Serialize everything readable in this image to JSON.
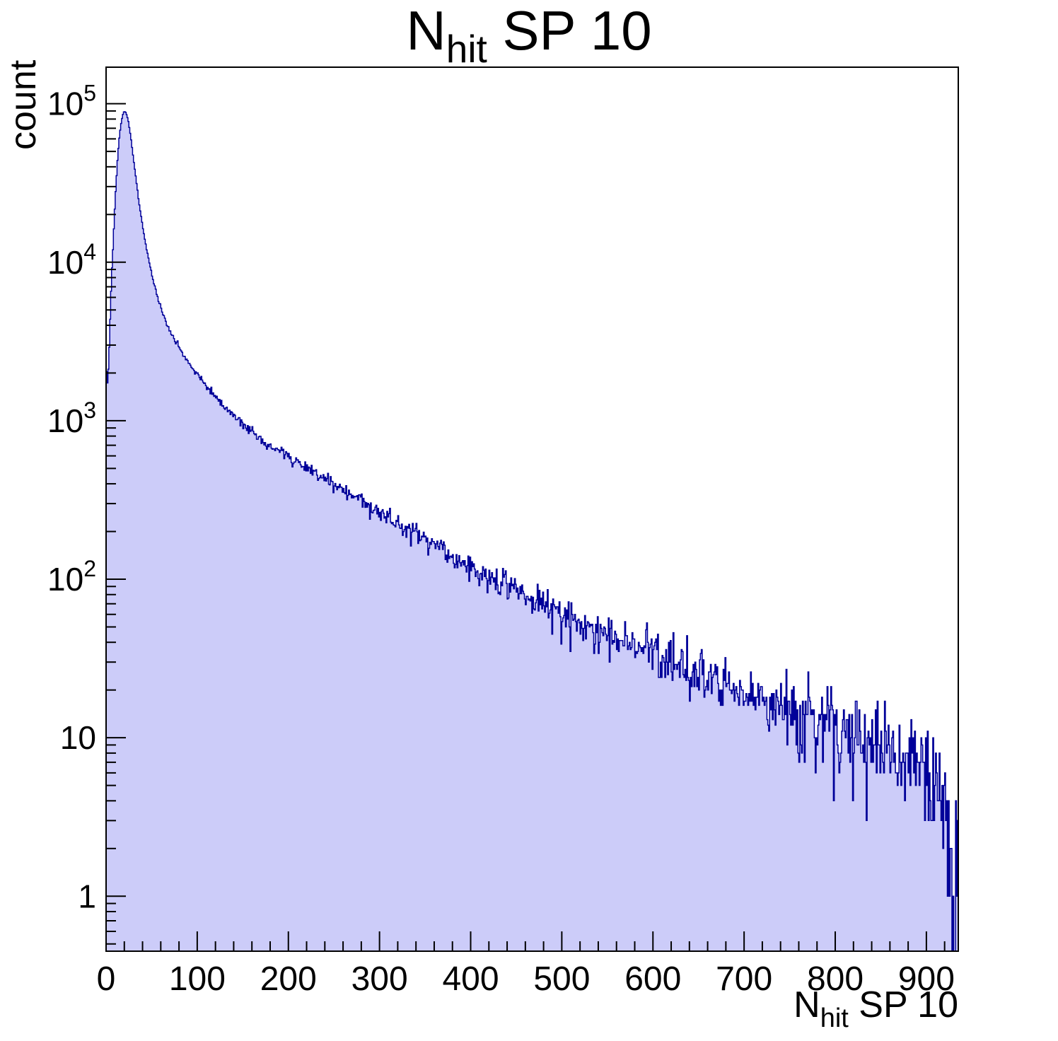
{
  "title": {
    "prefix": "N",
    "sub": "hit",
    "suffix": " SP 10"
  },
  "y_axis": {
    "label": "count"
  },
  "x_axis": {
    "label_prefix": "N",
    "label_sub": "hit",
    "label_suffix": " SP 10"
  },
  "chart_data": {
    "type": "bar",
    "subtype": "histogram-step-filled",
    "title": "N_{hit} SP 10",
    "xlabel": "N_{hit} SP 10",
    "ylabel": "count",
    "x_min": 0,
    "x_max": 935,
    "bin_width": 1,
    "y_scale": "log",
    "y_min": 0.45,
    "y_max": 170000,
    "grid": false,
    "legend": "none",
    "x_major_ticks": [
      0,
      100,
      200,
      300,
      400,
      500,
      600,
      700,
      800,
      900
    ],
    "x_minor_step": 20,
    "y_major_ticks": [
      {
        "value": 1,
        "base": "1",
        "exp": ""
      },
      {
        "value": 10,
        "base": "10",
        "exp": ""
      },
      {
        "value": 100,
        "base": "10",
        "exp": "2"
      },
      {
        "value": 1000,
        "base": "10",
        "exp": "3"
      },
      {
        "value": 10000,
        "base": "10",
        "exp": "4"
      },
      {
        "value": 100000,
        "base": "10",
        "exp": "5"
      }
    ],
    "envelope_points": [
      [
        0,
        2600
      ],
      [
        1,
        1500
      ],
      [
        2,
        1800
      ],
      [
        4,
        3500
      ],
      [
        6,
        8000
      ],
      [
        8,
        14000
      ],
      [
        10,
        25000
      ],
      [
        12,
        40000
      ],
      [
        14,
        57000
      ],
      [
        16,
        72000
      ],
      [
        18,
        84000
      ],
      [
        20,
        90000
      ],
      [
        22,
        88000
      ],
      [
        24,
        80000
      ],
      [
        26,
        68000
      ],
      [
        28,
        56000
      ],
      [
        30,
        45000
      ],
      [
        33,
        33000
      ],
      [
        36,
        24000
      ],
      [
        40,
        17000
      ],
      [
        44,
        12500
      ],
      [
        48,
        9500
      ],
      [
        52,
        7600
      ],
      [
        56,
        6200
      ],
      [
        60,
        5200
      ],
      [
        65,
        4300
      ],
      [
        70,
        3700
      ],
      [
        75,
        3250
      ],
      [
        80,
        2900
      ],
      [
        85,
        2600
      ],
      [
        90,
        2350
      ],
      [
        95,
        2150
      ],
      [
        100,
        1950
      ],
      [
        110,
        1650
      ],
      [
        120,
        1420
      ],
      [
        130,
        1230
      ],
      [
        140,
        1070
      ],
      [
        150,
        940
      ],
      [
        160,
        845
      ],
      [
        170,
        765
      ],
      [
        180,
        700
      ],
      [
        190,
        645
      ],
      [
        200,
        595
      ],
      [
        210,
        545
      ],
      [
        220,
        500
      ],
      [
        230,
        462
      ],
      [
        240,
        428
      ],
      [
        250,
        395
      ],
      [
        260,
        365
      ],
      [
        270,
        338
      ],
      [
        280,
        310
      ],
      [
        290,
        286
      ],
      [
        300,
        264
      ],
      [
        310,
        244
      ],
      [
        320,
        227
      ],
      [
        330,
        211
      ],
      [
        340,
        196
      ],
      [
        350,
        180
      ],
      [
        360,
        166
      ],
      [
        370,
        152
      ],
      [
        380,
        139
      ],
      [
        390,
        127
      ],
      [
        400,
        116
      ],
      [
        410,
        107
      ],
      [
        420,
        100
      ],
      [
        430,
        95
      ],
      [
        440,
        90
      ],
      [
        450,
        85
      ],
      [
        460,
        79
      ],
      [
        470,
        73
      ],
      [
        480,
        68
      ],
      [
        490,
        64
      ],
      [
        500,
        60
      ],
      [
        510,
        56
      ],
      [
        520,
        53
      ],
      [
        530,
        50
      ],
      [
        540,
        47
      ],
      [
        550,
        44
      ],
      [
        560,
        42
      ],
      [
        570,
        40
      ],
      [
        580,
        38
      ],
      [
        590,
        37
      ],
      [
        600,
        35
      ],
      [
        610,
        33
      ],
      [
        620,
        31
      ],
      [
        630,
        29
      ],
      [
        640,
        27
      ],
      [
        650,
        25
      ],
      [
        660,
        23.5
      ],
      [
        670,
        22
      ],
      [
        680,
        21
      ],
      [
        690,
        20
      ],
      [
        700,
        19
      ],
      [
        710,
        18
      ],
      [
        720,
        17
      ],
      [
        730,
        16
      ],
      [
        740,
        15.2
      ],
      [
        750,
        14.5
      ],
      [
        760,
        13.8
      ],
      [
        770,
        13.2
      ],
      [
        780,
        12.6
      ],
      [
        790,
        12.1
      ],
      [
        800,
        11.6
      ],
      [
        810,
        11.1
      ],
      [
        820,
        10.6
      ],
      [
        830,
        10.1
      ],
      [
        840,
        9.6
      ],
      [
        850,
        9.1
      ],
      [
        860,
        8.6
      ],
      [
        870,
        8.1
      ],
      [
        880,
        7.6
      ],
      [
        890,
        7.1
      ],
      [
        900,
        6.6
      ],
      [
        910,
        5.5
      ],
      [
        920,
        4.2
      ],
      [
        925,
        3.2
      ],
      [
        930,
        1.8
      ],
      [
        935,
        0.9
      ]
    ],
    "noise": "poisson",
    "seed": 20231007,
    "colors": {
      "fill": "#ccccf9",
      "line": "#000099",
      "axis": "#000000",
      "background": "#ffffff"
    }
  }
}
